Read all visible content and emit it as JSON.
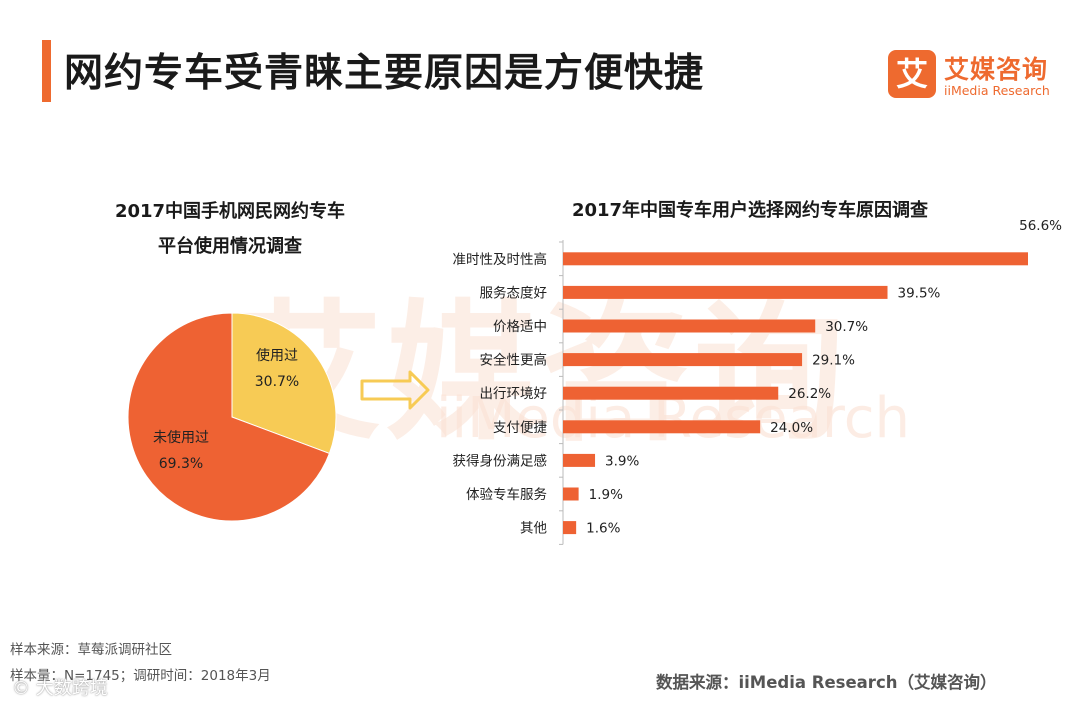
{
  "header": {
    "title": "网约专车受青睐主要原因是方便快捷",
    "accent_color": "#ee6a2f"
  },
  "logo": {
    "glyph": "艾",
    "name_cn": "艾媒咨询",
    "name_en": "iiMedia Research"
  },
  "watermark": {
    "cn": "艾媒咨询",
    "en": "iiMedia Research"
  },
  "chart_data": [
    {
      "type": "pie",
      "title_line1": "2017中国手机网民网约专车",
      "title_line2": "平台使用情况调查",
      "slices": [
        {
          "label": "使用过",
          "value": 30.7,
          "value_label": "30.7%",
          "color": "#f7cb55"
        },
        {
          "label": "未使用过",
          "value": 69.3,
          "value_label": "69.3%",
          "color": "#ee6233"
        }
      ]
    },
    {
      "type": "bar",
      "orientation": "horizontal",
      "title": "2017年中国专车用户选择网约专车原因调查",
      "categories": [
        "准时性及时性高",
        "服务态度好",
        "价格适中",
        "安全性更高",
        "出行环境好",
        "支付便捷",
        "获得身份满足感",
        "体验专车服务",
        "其他"
      ],
      "values": [
        56.6,
        39.5,
        30.7,
        29.1,
        26.2,
        24.0,
        3.9,
        1.9,
        1.6
      ],
      "value_labels": [
        "56.6%",
        "39.5%",
        "30.7%",
        "29.1%",
        "26.2%",
        "24.0%",
        "3.9%",
        "1.9%",
        "1.6%"
      ],
      "xlim": [
        0,
        56.6
      ],
      "color": "#ee6233"
    }
  ],
  "footer": {
    "sample_source": "样本来源：草莓派调研社区",
    "sample_size": "样本量：N=1745；调研时间：2018年3月",
    "data_source": "数据来源：iiMedia Research（艾媒咨询）",
    "corner_watermark": "© 大数跨境"
  }
}
